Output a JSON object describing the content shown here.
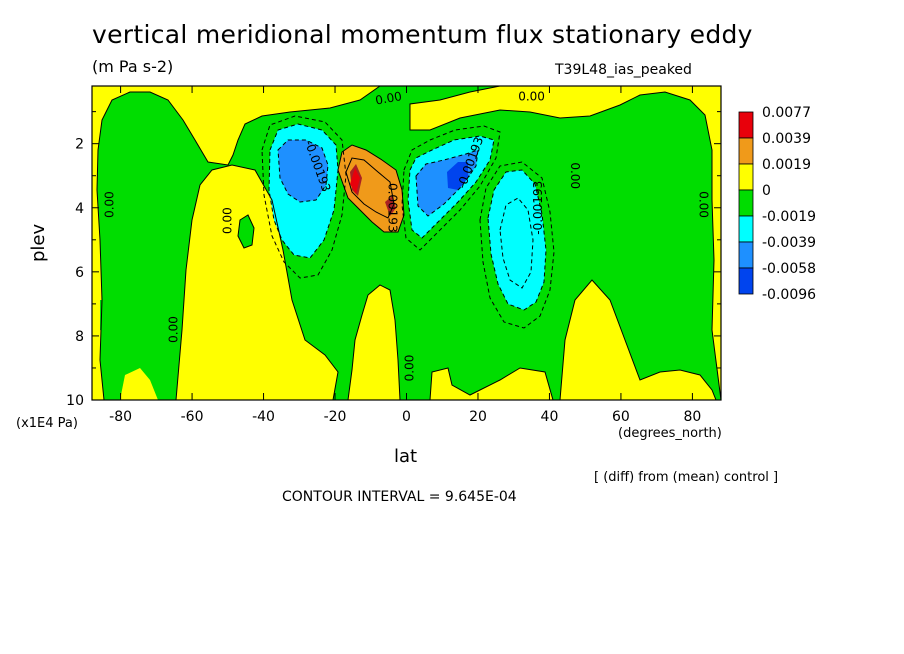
{
  "header": {
    "title": "vertical meridional momentum flux stationary eddy",
    "units": "(m Pa s-2)",
    "run_label": "T39L48_ias_peaked"
  },
  "footer": {
    "scale_note": "(x1E4 Pa)",
    "x_units": "(degrees_north)",
    "diff_note": "[ (diff) from (mean) control ]",
    "contour_interval": "CONTOUR INTERVAL = 9.645E-04"
  },
  "colors": {
    "red": "#e8000b",
    "orange": "#f09a1a",
    "yellow": "#ffff00",
    "green": "#00dd00",
    "cyan": "#00ffff",
    "mid_blue": "#1e90ff",
    "dark_blue": "#0044ee",
    "brown_red": "#aa2222"
  },
  "chart_data": {
    "type": "contour",
    "title": "vertical meridional momentum flux stationary eddy",
    "xlabel": "lat",
    "ylabel": "plev",
    "xlim": [
      -88,
      88
    ],
    "ylim": [
      10,
      0.2
    ],
    "x_ticks": [
      -80,
      -60,
      -40,
      -20,
      0,
      20,
      40,
      60,
      80
    ],
    "y_ticks": [
      2,
      4,
      6,
      8,
      10
    ],
    "contour_interval": 0.0009645,
    "legend": {
      "placement": "right",
      "levels": [
        "0.0077",
        "0.0039",
        "0.0019",
        "0",
        "-0.0019",
        "-0.0039",
        "-0.0058",
        "-0.0096"
      ],
      "colors": [
        "#e8000b",
        "#f09a1a",
        "#ffff00",
        "#00dd00",
        "#00ffff",
        "#1e90ff",
        "#0044ee"
      ]
    },
    "contour_labels": [
      {
        "text": "0.00",
        "x": -5,
        "y": 0.6,
        "angle": -10
      },
      {
        "text": "0.00",
        "x": 35,
        "y": 0.55,
        "angle": 0
      },
      {
        "text": "-0.00193",
        "x": -25,
        "y": 2.7,
        "angle": 70
      },
      {
        "text": "0.00193",
        "x": -4,
        "y": 4.0,
        "angle": 90
      },
      {
        "text": "-0.00193",
        "x": 18,
        "y": 2.6,
        "angle": -70
      },
      {
        "text": "-0.00193",
        "x": 37,
        "y": 4.0,
        "angle": -90
      },
      {
        "text": "0.00",
        "x": -83,
        "y": 3.9,
        "angle": -90
      },
      {
        "text": "0.00",
        "x": -50,
        "y": 4.4,
        "angle": -90
      },
      {
        "text": "0.00",
        "x": -65,
        "y": 7.8,
        "angle": -90
      },
      {
        "text": "0.00",
        "x": 47,
        "y": 3.0,
        "angle": 90
      },
      {
        "text": "0.00",
        "x": 83,
        "y": 3.9,
        "angle": 90
      },
      {
        "text": "0.00",
        "x": 1,
        "y": 9.0,
        "angle": -90
      }
    ],
    "features": [
      {
        "sign": "negative",
        "lat": -27,
        "plev": 3.0,
        "min": -0.0058
      },
      {
        "sign": "positive",
        "lat": -13,
        "plev": 3.2,
        "max": 0.0077
      },
      {
        "sign": "negative",
        "lat": 14,
        "plev": 3.0,
        "min": -0.0058
      },
      {
        "sign": "negative",
        "lat": 30,
        "plev": 5.0,
        "min": -0.0039
      }
    ]
  }
}
